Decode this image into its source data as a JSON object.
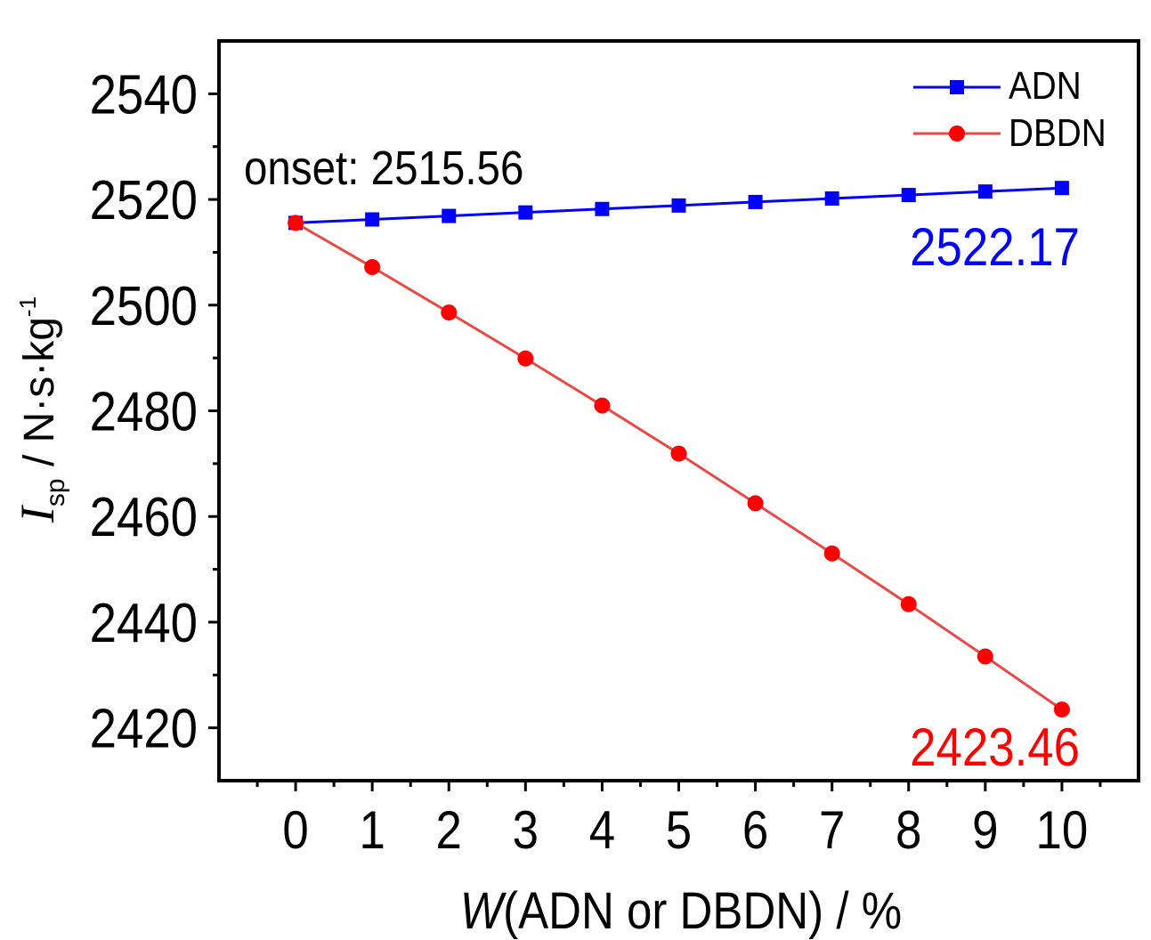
{
  "chart_data": {
    "type": "line",
    "xlabel_italic": "W",
    "xlabel_rest": "(ADN or DBDN) / %",
    "ylabel_symbol": "I",
    "ylabel_subscript": "sp",
    "ylabel_unit": " / N·s·kg",
    "ylabel_superscript": "-1",
    "x": [
      0,
      1,
      2,
      3,
      4,
      5,
      6,
      7,
      8,
      9,
      10
    ],
    "xlim": [
      -1,
      11
    ],
    "ylim": [
      2410,
      2550
    ],
    "xticks": [
      0,
      1,
      2,
      3,
      4,
      5,
      6,
      7,
      8,
      9,
      10
    ],
    "yticks": [
      2420,
      2440,
      2460,
      2480,
      2500,
      2520,
      2540
    ],
    "series": [
      {
        "name": "ADN",
        "color": "#0000ff",
        "marker": "square",
        "values": [
          2515.56,
          2516.22,
          2516.88,
          2517.54,
          2518.2,
          2518.86,
          2519.52,
          2520.18,
          2520.84,
          2521.5,
          2522.17
        ]
      },
      {
        "name": "DBDN",
        "color": "#ff0000",
        "line_color": "#e84a4a",
        "marker": "circle",
        "values": [
          2515.56,
          2507.2,
          2498.6,
          2489.9,
          2481.0,
          2471.9,
          2462.5,
          2453.0,
          2443.4,
          2433.5,
          2423.46
        ]
      }
    ],
    "annotations": {
      "onset": "onset: 2515.56",
      "adn_end": "2522.17",
      "dbdn_end": "2423.46"
    },
    "legend_position": "top-right",
    "grid": false
  }
}
